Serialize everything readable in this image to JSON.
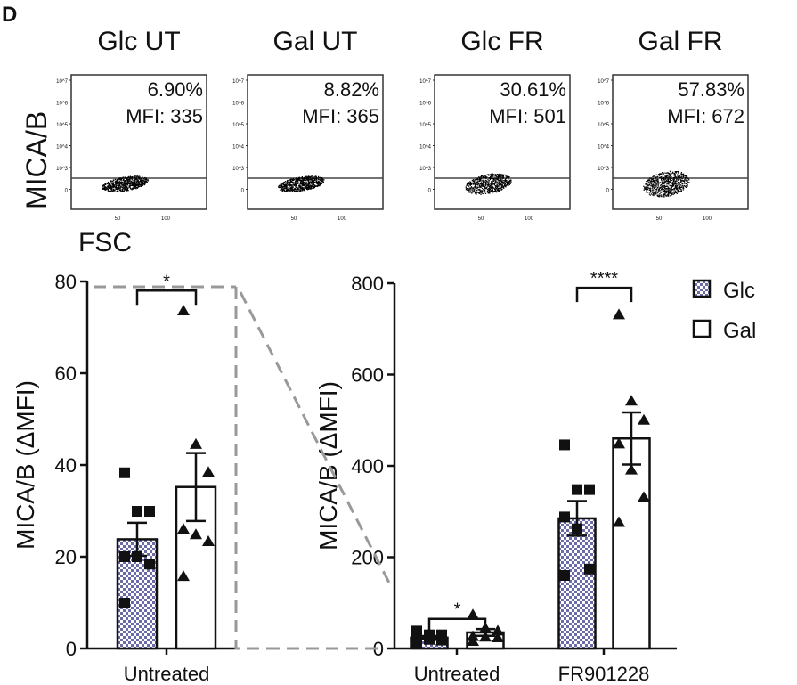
{
  "panel_label": "D",
  "flow": {
    "ylabel": "MICA/B",
    "xlabel": "FSC",
    "y_ticks": [
      "10^7",
      "10^6",
      "10^5",
      "10^4",
      "10^3",
      "0"
    ],
    "x_ticks": [
      "50",
      "100"
    ],
    "panels": [
      {
        "title": "Glc UT",
        "percent": "6.90%",
        "mfi": "MFI: 335"
      },
      {
        "title": "Gal UT",
        "percent": "8.82%",
        "mfi": "MFI: 365"
      },
      {
        "title": "Glc FR",
        "percent": "30.61%",
        "mfi": "MFI: 501"
      },
      {
        "title": "Gal FR",
        "percent": "57.83%",
        "mfi": "MFI: 672"
      }
    ]
  },
  "legend": {
    "placement": "top-right",
    "items": [
      {
        "label": "Glc",
        "pattern": "checkered",
        "color": "#6b6ba8"
      },
      {
        "label": "Gal",
        "pattern": "open",
        "color": "#ffffff"
      }
    ]
  },
  "chart_data": [
    {
      "type": "bar",
      "ylabel": "MICA/B (ΔMFI)",
      "ylim": [
        0,
        80
      ],
      "yticks": [
        0,
        20,
        40,
        60,
        80
      ],
      "categories": [
        "Untreated"
      ],
      "series": [
        {
          "name": "Glc",
          "values": [
            23.8
          ],
          "sem": [
            3.6
          ],
          "points": [
            [
              38.3,
              29.9,
              29.9,
              20,
              20,
              18.4,
              9.9
            ]
          ]
        },
        {
          "name": "Gal",
          "values": [
            35.2
          ],
          "sem": [
            7.4
          ],
          "points": [
            [
              73.6,
              44.5,
              38.4,
              26,
              24.8,
              23.3,
              15.7
            ]
          ]
        }
      ],
      "significance": [
        {
          "category": "Untreated",
          "label": "*"
        }
      ]
    },
    {
      "type": "bar",
      "ylabel": "MICA/B (ΔMFI)",
      "ylim": [
        0,
        800
      ],
      "yticks": [
        0,
        200,
        400,
        600,
        800
      ],
      "categories": [
        "Untreated",
        "FR901228"
      ],
      "series": [
        {
          "name": "Glc",
          "values": [
            23.8,
            285
          ],
          "sem": [
            3.6,
            38
          ],
          "points": [
            [
              38.3,
              29.9,
              29.9,
              20,
              20,
              18.4,
              9.9
            ],
            [
              446,
              348,
              348,
              288,
              262,
              174,
              160
            ]
          ]
        },
        {
          "name": "Gal",
          "values": [
            35.2,
            460
          ],
          "sem": [
            7.4,
            57
          ],
          "points": [
            [
              73.6,
              44.5,
              38.4,
              26,
              24.8,
              23.3,
              15.7
            ],
            [
              731,
              542,
              500,
              448,
              391,
              331,
              276
            ]
          ]
        }
      ],
      "significance": [
        {
          "category": "Untreated",
          "label": "*"
        },
        {
          "category": "FR901228",
          "label": "****"
        }
      ]
    }
  ]
}
